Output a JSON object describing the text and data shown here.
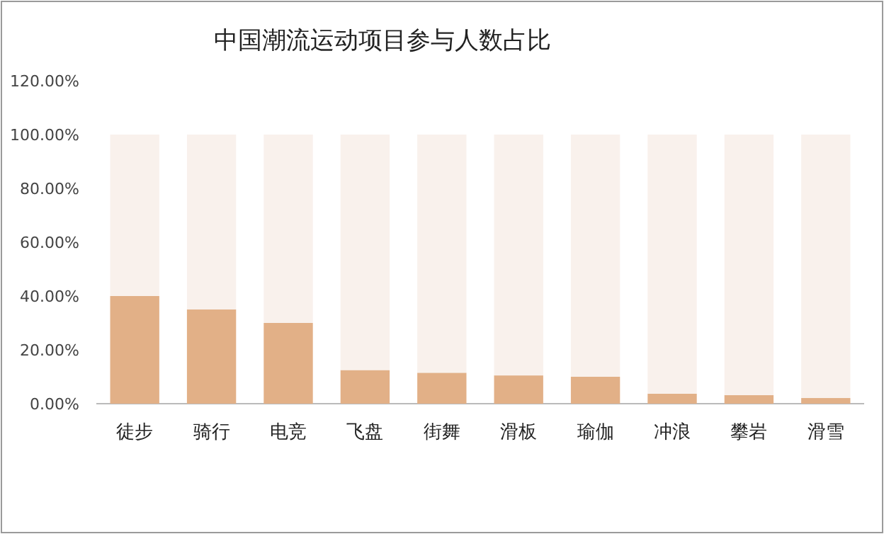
{
  "chart_data": {
    "type": "bar",
    "title": "中国潮流运动项目参与人数占比",
    "categories": [
      "徒步",
      "骑行",
      "电竞",
      "飞盘",
      "街舞",
      "滑板",
      "瑜伽",
      "冲浪",
      "攀岩",
      "滑雪"
    ],
    "series": [
      {
        "color": "#e2b087",
        "values": [
          40,
          35,
          30,
          12.5,
          11.5,
          10.5,
          10,
          3.7,
          3.2,
          2.1
        ]
      },
      {
        "color": "#f9f1ec",
        "values": [
          60,
          65,
          70,
          87.5,
          88.5,
          89.5,
          90,
          96.3,
          96.8,
          97.9
        ]
      }
    ],
    "ylim": [
      0,
      120
    ],
    "yticks": [
      {
        "value": 0,
        "label": "0.00%"
      },
      {
        "value": 20,
        "label": "20.00%"
      },
      {
        "value": 40,
        "label": "40.00%"
      },
      {
        "value": 60,
        "label": "60.00%"
      },
      {
        "value": 80,
        "label": "80.00%"
      },
      {
        "value": 100,
        "label": "100.00%"
      },
      {
        "value": 120,
        "label": "120.00%"
      }
    ],
    "stacked": true,
    "grid": false
  }
}
